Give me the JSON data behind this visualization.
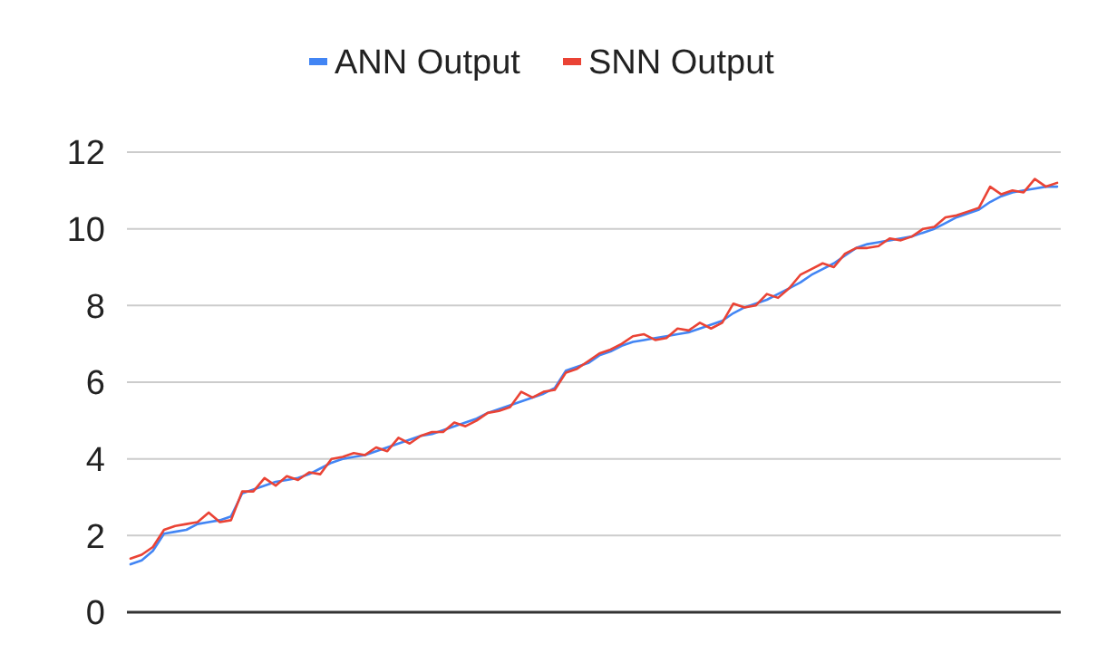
{
  "chart_data": {
    "type": "line",
    "categories": [
      null,
      null,
      null,
      null,
      null,
      null,
      null,
      null,
      null,
      null,
      null,
      null,
      null,
      null,
      null,
      null,
      null,
      null,
      null,
      null,
      null,
      null,
      null,
      null,
      null,
      null,
      null,
      null,
      null,
      null,
      null,
      null,
      null,
      null,
      null,
      null,
      null,
      null,
      null,
      null,
      null,
      null,
      null,
      null,
      null,
      null,
      null,
      null,
      null,
      null,
      null,
      null,
      null,
      null,
      null,
      null,
      null,
      null,
      null,
      null,
      null,
      null,
      null,
      null,
      null,
      null,
      null,
      null,
      null,
      null,
      null,
      null,
      null,
      null,
      null,
      null,
      null,
      null,
      null,
      null,
      null,
      null,
      null,
      null
    ],
    "series": [
      {
        "name": "ANN Output",
        "color": "#4285f4",
        "values": [
          1.25,
          1.35,
          1.6,
          2.05,
          2.1,
          2.15,
          2.3,
          2.35,
          2.4,
          2.5,
          3.1,
          3.2,
          3.3,
          3.4,
          3.45,
          3.5,
          3.6,
          3.75,
          3.9,
          4.0,
          4.05,
          4.1,
          4.2,
          4.3,
          4.4,
          4.5,
          4.6,
          4.65,
          4.75,
          4.85,
          4.95,
          5.05,
          5.2,
          5.3,
          5.4,
          5.5,
          5.6,
          5.7,
          5.85,
          6.3,
          6.4,
          6.5,
          6.7,
          6.8,
          6.95,
          7.05,
          7.1,
          7.15,
          7.2,
          7.25,
          7.3,
          7.4,
          7.5,
          7.6,
          7.8,
          7.95,
          8.05,
          8.15,
          8.3,
          8.45,
          8.6,
          8.8,
          8.95,
          9.1,
          9.3,
          9.5,
          9.6,
          9.65,
          9.7,
          9.75,
          9.8,
          9.9,
          10.0,
          10.15,
          10.3,
          10.4,
          10.5,
          10.7,
          10.85,
          10.95,
          11.0,
          11.05,
          11.1,
          11.1
        ]
      },
      {
        "name": "SNN Output",
        "color": "#ea4335",
        "values": [
          1.4,
          1.5,
          1.7,
          2.15,
          2.25,
          2.3,
          2.35,
          2.6,
          2.35,
          2.4,
          3.15,
          3.15,
          3.5,
          3.3,
          3.55,
          3.45,
          3.65,
          3.6,
          4.0,
          4.05,
          4.15,
          4.1,
          4.3,
          4.2,
          4.55,
          4.4,
          4.6,
          4.7,
          4.7,
          4.95,
          4.85,
          5.0,
          5.2,
          5.25,
          5.35,
          5.75,
          5.6,
          5.75,
          5.8,
          6.25,
          6.35,
          6.55,
          6.75,
          6.85,
          7.0,
          7.2,
          7.25,
          7.1,
          7.15,
          7.4,
          7.35,
          7.55,
          7.4,
          7.55,
          8.05,
          7.95,
          8.0,
          8.3,
          8.2,
          8.45,
          8.8,
          8.95,
          9.1,
          9.0,
          9.35,
          9.5,
          9.5,
          9.55,
          9.75,
          9.7,
          9.8,
          10.0,
          10.05,
          10.3,
          10.35,
          10.45,
          10.55,
          11.1,
          10.9,
          11.0,
          10.95,
          11.3,
          11.1,
          11.2
        ]
      }
    ],
    "ylim": [
      0,
      12
    ],
    "yticks": [
      0,
      2,
      4,
      6,
      8,
      10,
      12
    ],
    "grid": "y",
    "legend": "top",
    "marker": "none",
    "line_style": "solid"
  }
}
